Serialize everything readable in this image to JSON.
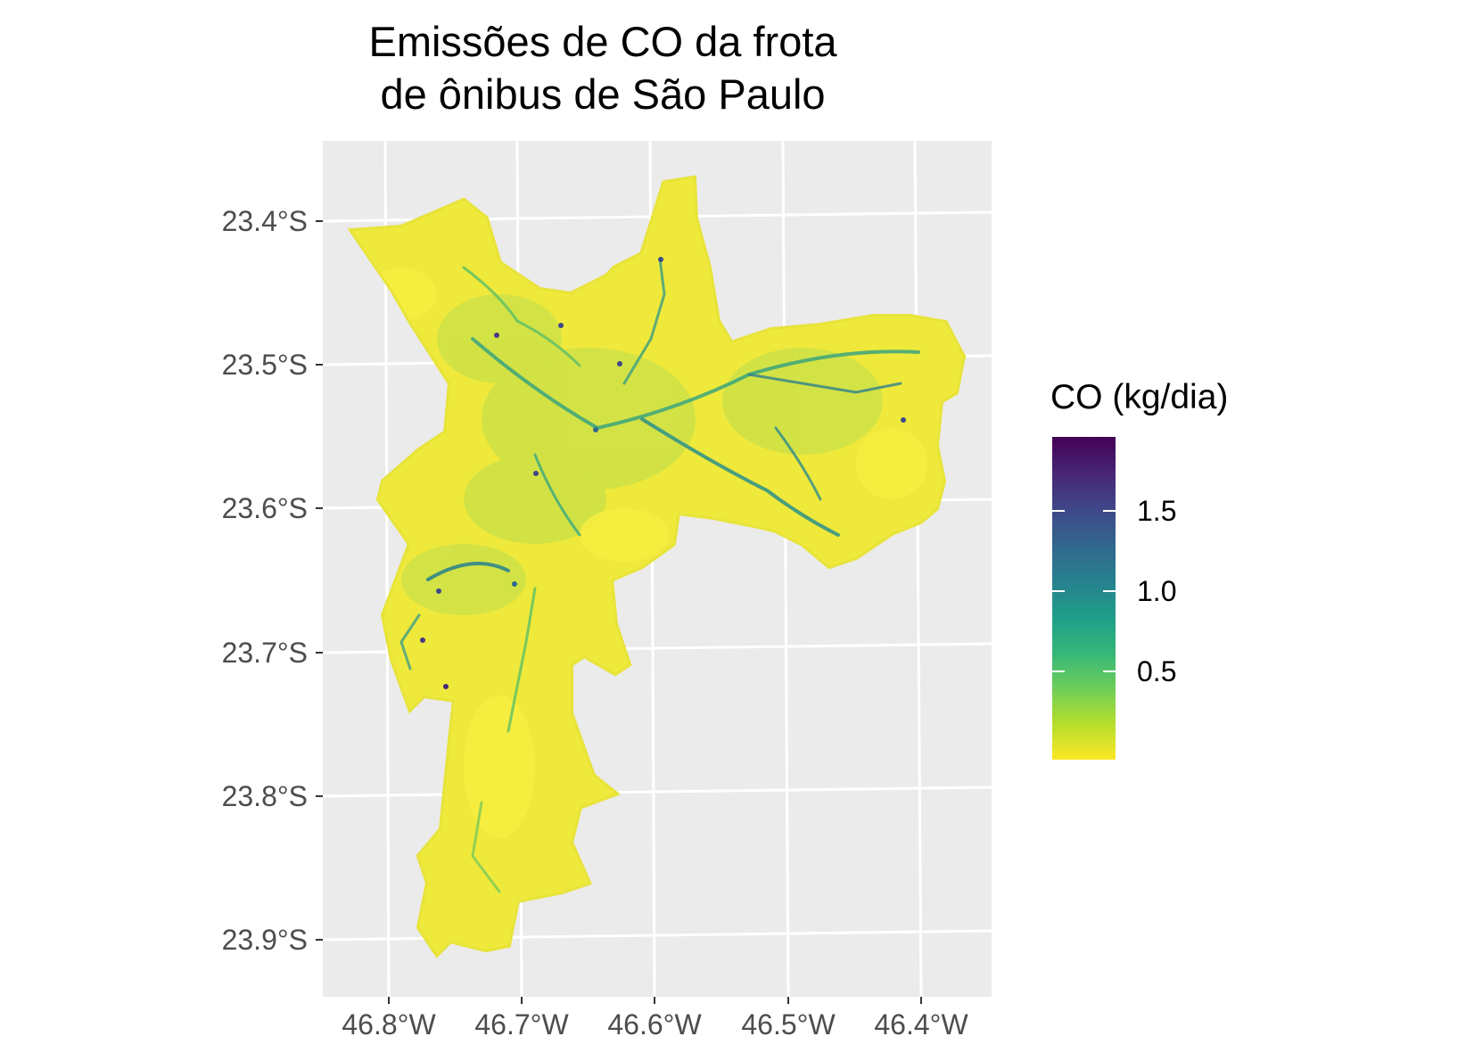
{
  "map": {
    "title_line_1": "Emissões de CO da frota",
    "title_line_2": "de ônibus de São Paulo",
    "panel_background": "#ebebeb",
    "graticule_color": "#ffffff",
    "y_ticks": [
      "23.4°S",
      "23.5°S",
      "23.6°S",
      "23.7°S",
      "23.8°S",
      "23.9°S"
    ],
    "x_ticks": [
      "46.8°W",
      "46.7°W",
      "46.6°W",
      "46.5°W",
      "46.4°W"
    ],
    "legend": {
      "title": "CO (kg/dia)",
      "labels": [
        "1.5",
        "1.0",
        "0.5"
      ],
      "colormap": "viridis (reversed)",
      "color_stops": [
        "#fde725",
        "#b5de2b",
        "#6ece58",
        "#35b779",
        "#1f9e89",
        "#26828e",
        "#31688e",
        "#3e4989",
        "#482878",
        "#440154"
      ],
      "min_value": 0,
      "max_value": 1.95
    }
  }
}
